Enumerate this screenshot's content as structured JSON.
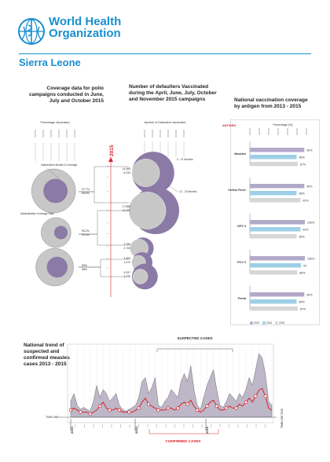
{
  "header": {
    "org_line1": "World Health",
    "org_line2": "Organization",
    "country": "Sierra Leone"
  },
  "colors": {
    "brand_blue": "#1a8fcf",
    "accent_red": "#d9242b",
    "purple": "#8b7aa5",
    "gray": "#c7c7c7"
  },
  "chart_data": [
    {
      "type": "bubble",
      "title": "Coverage data for polio campaigns conducted in June, July and October 2015",
      "axis_label": "Percentage Vaccinated",
      "annotations": [
        "Independent Monitor's Coverage",
        "Administrative Coverage Ratio"
      ],
      "series": [
        {
          "name": "Independent Monitor's Coverage",
          "values": [
            97.7,
            95.2,
            89
          ]
        },
        {
          "name": "Administrative Coverage Ratio",
          "values": [
            98.6,
            95.4,
            98
          ]
        }
      ]
    },
    {
      "type": "bubble",
      "title": "Number of defaulters Vaccinated during the April, June, July, October and November 2015 campaigns",
      "axis_label": "Number of Defaulters Vaccinated",
      "year": "2015",
      "annotations": [
        "0 - 11 Months",
        "12 - 23 Months"
      ],
      "series": [
        {
          "name": "0 - 11 Months",
          "values": [
            14369,
            17883,
            3786,
            3363,
            5337
          ]
        },
        {
          "name": "12 - 23 Months",
          "values": [
            6234,
            11107,
            2702,
            1570,
            1775
          ]
        }
      ],
      "labels_primary": [
        "14,369",
        "17,883",
        "3,786",
        "3,363",
        "5,337"
      ],
      "labels_secondary": [
        "6,234",
        "11,107",
        "2,702",
        "1,570",
        "1,775"
      ]
    },
    {
      "type": "bar",
      "title": "National vaccination coverage by antigen from 2013 - 2015",
      "axis_label": "Percentage (%)",
      "category_header": "ANTIGEN",
      "categories": [
        "Measles",
        "Yellow Fever",
        "OPV 3",
        "PCV 3",
        "Penta"
      ],
      "series": [
        {
          "name": "2013",
          "values": [
            99,
            99,
            100,
            100,
            99
          ]
        },
        {
          "name": "2014",
          "values": [
            85,
            85,
            92,
            93,
            85
          ]
        },
        {
          "name": "2015",
          "values": [
            87,
            92,
            85,
            86,
            87
          ]
        }
      ],
      "value_labels": [
        [
          "99%",
          "85%",
          "87%"
        ],
        [
          "99%",
          "85%",
          "92%"
        ],
        [
          "100%",
          "92%",
          "85%"
        ],
        [
          "100%",
          "93",
          "86%"
        ],
        [
          "99%",
          "85%",
          "87%"
        ]
      ],
      "xlim": [
        0,
        100
      ]
    },
    {
      "type": "area",
      "title": "National trend of suspected and confirmed measles cases 2013 - 2015",
      "years": [
        "2013",
        "2014",
        "2015"
      ],
      "start_label": "TIMELINE",
      "end_label": "TIMELINE END",
      "series": [
        {
          "name": "SUSPECTED CASES",
          "values": [
            8,
            12,
            6,
            4,
            5,
            4,
            3,
            8,
            16,
            10,
            14,
            12,
            8,
            10,
            12,
            6,
            4,
            3,
            4,
            5,
            6,
            10,
            18,
            20,
            12,
            15,
            20,
            6,
            5,
            8,
            10,
            14,
            12,
            10,
            18,
            22,
            18,
            26,
            14,
            6,
            4,
            10,
            16,
            20,
            24,
            14,
            6,
            5,
            8,
            12,
            10,
            8,
            12,
            10,
            14,
            20,
            16,
            24,
            32,
            30,
            22,
            8,
            6
          ]
        },
        {
          "name": "CONFIRMED CASES",
          "values": [
            2,
            3,
            2,
            1,
            1,
            1,
            0,
            1,
            2,
            4,
            6,
            3,
            2,
            2,
            3,
            2,
            1,
            1,
            1,
            1,
            2,
            3,
            6,
            8,
            5,
            4,
            3,
            2,
            2,
            2,
            3,
            3,
            2,
            3,
            5,
            6,
            5,
            7,
            4,
            2,
            1,
            2,
            4,
            6,
            7,
            4,
            2,
            2,
            3,
            4,
            3,
            3,
            5,
            4,
            6,
            8,
            6,
            9,
            12,
            13,
            9,
            3,
            2
          ]
        }
      ],
      "ylim": [
        0,
        36
      ]
    }
  ]
}
